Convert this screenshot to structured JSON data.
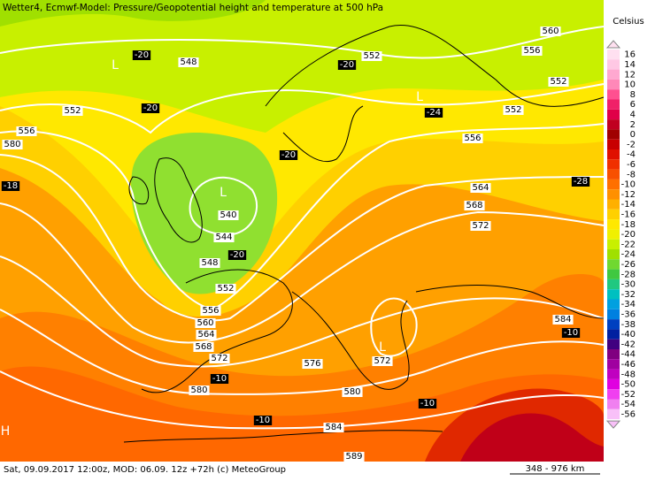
{
  "header": {
    "title": "Wetter4, Ecmwf-Model: Pressure/Geopotential height and temperature at 500 hPa"
  },
  "footer": {
    "text": "Sat, 09.09.2017 12:00z, MOD: 06.09. 12z +72h (c) MeteoGroup",
    "scale": "348 - 976 km"
  },
  "legend": {
    "title": "Celsius",
    "items": [
      {
        "label": "16",
        "color": "#ffe0f0"
      },
      {
        "label": "14",
        "color": "#ffc8e4"
      },
      {
        "label": "12",
        "color": "#ffa8d0"
      },
      {
        "label": "10",
        "color": "#ff88b8"
      },
      {
        "label": "8",
        "color": "#ff5090"
      },
      {
        "label": "6",
        "color": "#f02068"
      },
      {
        "label": "4",
        "color": "#e00048"
      },
      {
        "label": "2",
        "color": "#c00020"
      },
      {
        "label": "0",
        "color": "#a00000"
      },
      {
        "label": "-2",
        "color": "#c80000"
      },
      {
        "label": "-4",
        "color": "#e01000"
      },
      {
        "label": "-6",
        "color": "#f03000"
      },
      {
        "label": "-8",
        "color": "#f85000"
      },
      {
        "label": "-10",
        "color": "#ff7000"
      },
      {
        "label": "-12",
        "color": "#ff9000"
      },
      {
        "label": "-14",
        "color": "#ffb000"
      },
      {
        "label": "-16",
        "color": "#ffd000"
      },
      {
        "label": "-18",
        "color": "#ffe800"
      },
      {
        "label": "-20",
        "color": "#f0f000"
      },
      {
        "label": "-22",
        "color": "#c8f000"
      },
      {
        "label": "-24",
        "color": "#a0e000"
      },
      {
        "label": "-26",
        "color": "#70d830"
      },
      {
        "label": "-28",
        "color": "#40c840"
      },
      {
        "label": "-30",
        "color": "#20c880"
      },
      {
        "label": "-32",
        "color": "#00c0c0"
      },
      {
        "label": "-34",
        "color": "#00a0e0"
      },
      {
        "label": "-36",
        "color": "#0080e0"
      },
      {
        "label": "-38",
        "color": "#0040c0"
      },
      {
        "label": "-40",
        "color": "#0020a0"
      },
      {
        "label": "-42",
        "color": "#400080"
      },
      {
        "label": "-44",
        "color": "#800080"
      },
      {
        "label": "-46",
        "color": "#a000a0"
      },
      {
        "label": "-48",
        "color": "#c000c0"
      },
      {
        "label": "-50",
        "color": "#e000e0"
      },
      {
        "label": "-52",
        "color": "#f040f0"
      },
      {
        "label": "-54",
        "color": "#f080f0"
      },
      {
        "label": "-56",
        "color": "#f8c0f8"
      }
    ]
  },
  "map": {
    "contour_labels": [
      "560",
      "556",
      "552",
      "552",
      "548",
      "552",
      "552",
      "556",
      "580",
      "556",
      "564",
      "568",
      "572",
      "540",
      "544",
      "548",
      "552",
      "556",
      "560",
      "564",
      "568",
      "572",
      "576",
      "572",
      "580",
      "580",
      "584",
      "584",
      "589"
    ],
    "temperature_labels": [
      "-20",
      "-20",
      "-20",
      "-24",
      "-20",
      "-28",
      "-18",
      "-20",
      "-10",
      "-10",
      "-10",
      "-10"
    ],
    "pressure_centers": [
      "L",
      "L",
      "L",
      "L",
      "H"
    ]
  }
}
